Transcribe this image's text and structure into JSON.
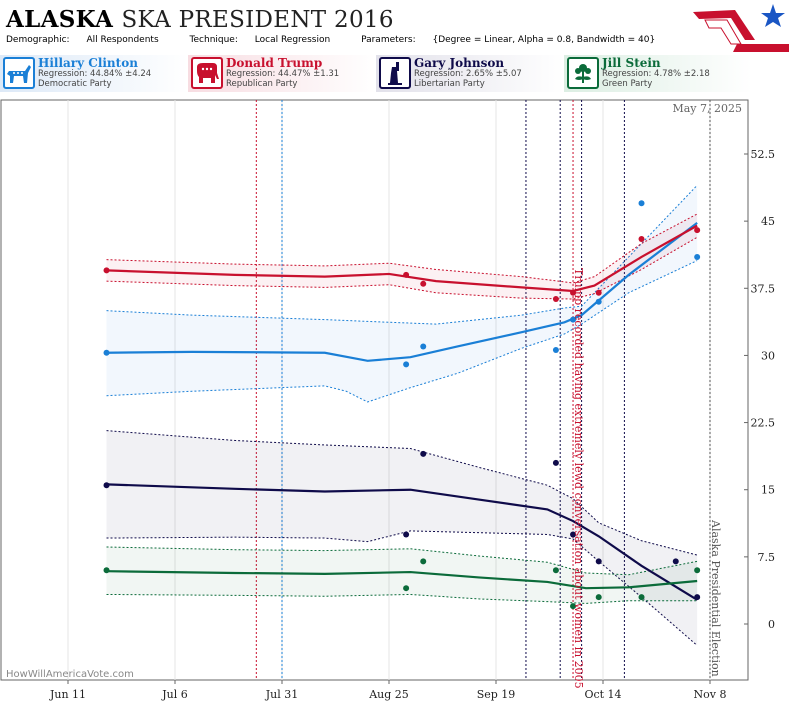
{
  "header": {
    "title_state": "ALASKA",
    "title_rest": "SKA PRESIDENT 2016",
    "demographic_label": "Demographic:",
    "demographic": "All Respondents",
    "technique_label": "Technique:",
    "technique": "Local Regression",
    "parameters_label": "Parameters:",
    "parameters": "{Degree = Linear, Alpha = 0.8, Bandwidth = 40}"
  },
  "candidates": [
    {
      "name": "Hillary Clinton",
      "regression": "Regression: 44.84% ±4.24",
      "party": "Democratic Party",
      "color": "#1a7fd6",
      "icon": "donkey-icon"
    },
    {
      "name": "Donald Trump",
      "regression": "Regression: 44.47% ±1.31",
      "party": "Republican Party",
      "color": "#c8102e",
      "icon": "elephant-icon"
    },
    {
      "name": "Gary Johnson",
      "regression": "Regression: 2.65% ±5.07",
      "party": "Libertarian Party",
      "color": "#0f0b4a",
      "icon": "statue-of-liberty-icon"
    },
    {
      "name": "Jill Stein",
      "regression": "Regression: 4.78% ±2.18",
      "party": "Green Party",
      "color": "#0b6b3a",
      "icon": "flower-icon"
    }
  ],
  "chart_data": {
    "type": "line",
    "date_label": "May 7, 2025",
    "watermark": "HowWillAmericaVote.com",
    "x_ticks": [
      "Jun 11",
      "Jul 6",
      "Jul 31",
      "Aug 25",
      "Sep 19",
      "Oct 14",
      "Nov 8"
    ],
    "y_ticks": [
      0,
      7.5,
      15,
      22.5,
      30,
      37.5,
      45,
      52.5
    ],
    "ylim": [
      -3.5,
      58
    ],
    "xlim": [
      "2016-06-01",
      "2016-11-10"
    ],
    "grid": "vertical only, at x ticks",
    "event_lines": [
      {
        "date": "2016-07-25",
        "color": "#c8102e"
      },
      {
        "date": "2016-07-31",
        "color": "#1a7fd6"
      },
      {
        "date": "2016-09-26",
        "color": "#0f0b4a"
      },
      {
        "date": "2016-10-04",
        "color": "#0f0b4a"
      },
      {
        "date": "2016-10-07",
        "color": "#c8102e"
      },
      {
        "date": "2016-10-09",
        "color": "#0f0b4a"
      },
      {
        "date": "2016-10-19",
        "color": "#0f0b4a"
      },
      {
        "date": "2016-11-08",
        "color": "#555555"
      }
    ],
    "annotations": [
      {
        "text": "Trump recorded having extremely lewd conversation about women in 2005",
        "date": "2016-10-07",
        "color": "#c8102e"
      },
      {
        "text": "Alaska Presidential Election",
        "date": "2016-11-08",
        "color": "#555555"
      }
    ],
    "series": [
      {
        "name": "Hillary Clinton",
        "color": "#1a7fd6",
        "points": [
          [
            "2016-06-20",
            30.3
          ],
          [
            "2016-08-29",
            29.0
          ],
          [
            "2016-09-02",
            31.0
          ],
          [
            "2016-10-03",
            30.6
          ],
          [
            "2016-10-07",
            34.0
          ],
          [
            "2016-10-13",
            36.0
          ],
          [
            "2016-10-23",
            47.0
          ],
          [
            "2016-11-05",
            41.0
          ]
        ],
        "trend": [
          [
            "2016-06-20",
            30.3
          ],
          [
            "2016-07-10",
            30.4
          ],
          [
            "2016-08-10",
            30.3
          ],
          [
            "2016-08-20",
            29.4
          ],
          [
            "2016-08-30",
            29.8
          ],
          [
            "2016-09-10",
            31.0
          ],
          [
            "2016-09-25",
            32.6
          ],
          [
            "2016-10-05",
            33.7
          ],
          [
            "2016-10-09",
            34.5
          ],
          [
            "2016-10-20",
            39.0
          ],
          [
            "2016-11-05",
            44.8
          ]
        ],
        "upper": [
          [
            "2016-06-20",
            35.0
          ],
          [
            "2016-07-10",
            34.5
          ],
          [
            "2016-08-10",
            34.0
          ],
          [
            "2016-08-20",
            33.8
          ],
          [
            "2016-09-05",
            33.5
          ],
          [
            "2016-09-25",
            34.5
          ],
          [
            "2016-10-05",
            35.3
          ],
          [
            "2016-10-09",
            35.5
          ],
          [
            "2016-10-20",
            41.0
          ],
          [
            "2016-11-05",
            49.0
          ]
        ],
        "lower": [
          [
            "2016-06-20",
            25.5
          ],
          [
            "2016-07-10",
            26.0
          ],
          [
            "2016-08-10",
            26.6
          ],
          [
            "2016-08-15",
            26.0
          ],
          [
            "2016-08-20",
            24.8
          ],
          [
            "2016-08-30",
            26.4
          ],
          [
            "2016-09-10",
            28.0
          ],
          [
            "2016-09-25",
            30.8
          ],
          [
            "2016-10-05",
            32.4
          ],
          [
            "2016-10-09",
            33.5
          ],
          [
            "2016-10-20",
            37.0
          ],
          [
            "2016-11-05",
            40.6
          ]
        ]
      },
      {
        "name": "Donald Trump",
        "color": "#c8102e",
        "points": [
          [
            "2016-06-20",
            39.5
          ],
          [
            "2016-08-29",
            39.0
          ],
          [
            "2016-09-02",
            38.0
          ],
          [
            "2016-10-03",
            36.3
          ],
          [
            "2016-10-07",
            37.0
          ],
          [
            "2016-10-13",
            37.0
          ],
          [
            "2016-10-23",
            43.0
          ],
          [
            "2016-11-05",
            44.0
          ]
        ],
        "trend": [
          [
            "2016-06-20",
            39.5
          ],
          [
            "2016-07-20",
            39.0
          ],
          [
            "2016-08-10",
            38.8
          ],
          [
            "2016-08-25",
            39.1
          ],
          [
            "2016-09-05",
            38.3
          ],
          [
            "2016-09-25",
            37.6
          ],
          [
            "2016-10-07",
            37.2
          ],
          [
            "2016-10-12",
            37.8
          ],
          [
            "2016-10-23",
            41.0
          ],
          [
            "2016-11-05",
            44.5
          ]
        ],
        "upper": [
          [
            "2016-06-20",
            40.7
          ],
          [
            "2016-07-20",
            40.2
          ],
          [
            "2016-08-10",
            40.0
          ],
          [
            "2016-08-25",
            40.3
          ],
          [
            "2016-09-05",
            39.6
          ],
          [
            "2016-09-25",
            38.8
          ],
          [
            "2016-10-07",
            38.1
          ],
          [
            "2016-10-12",
            38.8
          ],
          [
            "2016-10-23",
            42.5
          ],
          [
            "2016-11-05",
            45.8
          ]
        ],
        "lower": [
          [
            "2016-06-20",
            38.3
          ],
          [
            "2016-07-20",
            37.8
          ],
          [
            "2016-08-10",
            37.6
          ],
          [
            "2016-08-25",
            37.9
          ],
          [
            "2016-09-05",
            37.0
          ],
          [
            "2016-09-25",
            36.4
          ],
          [
            "2016-10-07",
            36.3
          ],
          [
            "2016-10-12",
            36.9
          ],
          [
            "2016-10-23",
            39.6
          ],
          [
            "2016-11-05",
            43.2
          ]
        ]
      },
      {
        "name": "Gary Johnson",
        "color": "#0f0b4a",
        "points": [
          [
            "2016-06-20",
            15.5
          ],
          [
            "2016-08-29",
            10.0
          ],
          [
            "2016-09-02",
            19.0
          ],
          [
            "2016-10-03",
            18.0
          ],
          [
            "2016-10-07",
            10.0
          ],
          [
            "2016-10-13",
            7.0
          ],
          [
            "2016-10-31",
            7.0
          ],
          [
            "2016-11-05",
            3.0
          ]
        ],
        "trend": [
          [
            "2016-06-20",
            15.6
          ],
          [
            "2016-07-20",
            15.1
          ],
          [
            "2016-08-10",
            14.8
          ],
          [
            "2016-08-30",
            15.0
          ],
          [
            "2016-09-15",
            13.9
          ],
          [
            "2016-10-01",
            12.8
          ],
          [
            "2016-10-07",
            11.5
          ],
          [
            "2016-10-13",
            9.8
          ],
          [
            "2016-10-23",
            6.5
          ],
          [
            "2016-11-05",
            2.7
          ]
        ],
        "upper": [
          [
            "2016-06-20",
            21.6
          ],
          [
            "2016-07-20",
            20.5
          ],
          [
            "2016-08-10",
            20.0
          ],
          [
            "2016-08-30",
            19.6
          ],
          [
            "2016-09-15",
            17.5
          ],
          [
            "2016-10-01",
            15.5
          ],
          [
            "2016-10-07",
            14.0
          ],
          [
            "2016-10-13",
            11.3
          ],
          [
            "2016-10-23",
            9.3
          ],
          [
            "2016-11-05",
            7.7
          ]
        ],
        "lower": [
          [
            "2016-06-20",
            9.6
          ],
          [
            "2016-07-20",
            9.7
          ],
          [
            "2016-08-10",
            9.6
          ],
          [
            "2016-08-20",
            9.2
          ],
          [
            "2016-08-30",
            10.4
          ],
          [
            "2016-09-15",
            10.2
          ],
          [
            "2016-10-01",
            10.0
          ],
          [
            "2016-10-07",
            9.5
          ],
          [
            "2016-10-13",
            7.0
          ],
          [
            "2016-10-23",
            3.0
          ],
          [
            "2016-11-05",
            -2.4
          ]
        ]
      },
      {
        "name": "Jill Stein",
        "color": "#0b6b3a",
        "points": [
          [
            "2016-06-20",
            6.0
          ],
          [
            "2016-08-29",
            4.0
          ],
          [
            "2016-09-02",
            7.0
          ],
          [
            "2016-10-03",
            6.0
          ],
          [
            "2016-10-07",
            2.0
          ],
          [
            "2016-10-13",
            3.0
          ],
          [
            "2016-10-23",
            3.0
          ],
          [
            "2016-11-05",
            6.0
          ]
        ],
        "trend": [
          [
            "2016-06-20",
            5.9
          ],
          [
            "2016-07-20",
            5.7
          ],
          [
            "2016-08-10",
            5.6
          ],
          [
            "2016-08-30",
            5.8
          ],
          [
            "2016-09-15",
            5.2
          ],
          [
            "2016-10-01",
            4.7
          ],
          [
            "2016-10-10",
            4.0
          ],
          [
            "2016-10-20",
            4.1
          ],
          [
            "2016-11-05",
            4.8
          ]
        ],
        "upper": [
          [
            "2016-06-20",
            8.6
          ],
          [
            "2016-07-20",
            8.3
          ],
          [
            "2016-08-10",
            8.2
          ],
          [
            "2016-08-30",
            8.4
          ],
          [
            "2016-09-15",
            7.6
          ],
          [
            "2016-10-01",
            6.9
          ],
          [
            "2016-10-10",
            5.7
          ],
          [
            "2016-10-20",
            5.5
          ],
          [
            "2016-11-05",
            7.0
          ]
        ],
        "lower": [
          [
            "2016-06-20",
            3.3
          ],
          [
            "2016-07-20",
            3.2
          ],
          [
            "2016-08-10",
            3.1
          ],
          [
            "2016-08-30",
            3.3
          ],
          [
            "2016-09-15",
            2.8
          ],
          [
            "2016-10-01",
            2.5
          ],
          [
            "2016-10-10",
            2.3
          ],
          [
            "2016-10-20",
            2.6
          ],
          [
            "2016-11-05",
            2.6
          ]
        ]
      }
    ]
  }
}
